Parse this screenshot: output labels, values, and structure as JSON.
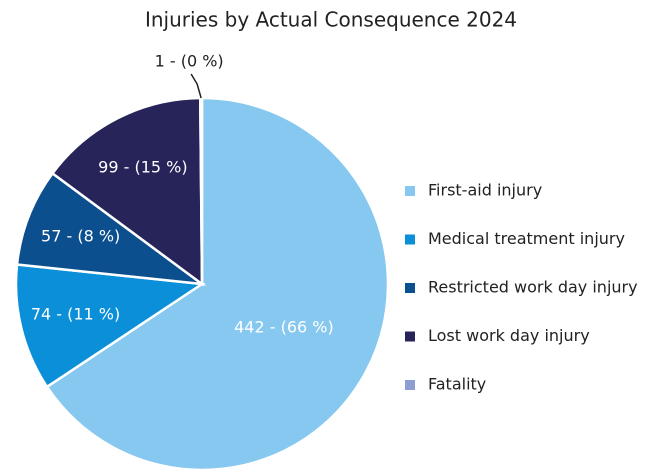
{
  "chart_data": {
    "type": "pie",
    "title": "Injuries by Actual Consequence 2024",
    "categories": [
      "First-aid injury",
      "Medical treatment injury",
      "Restricted work day injury",
      "Lost work day injury",
      "Fatality"
    ],
    "values": [
      442,
      74,
      57,
      99,
      1
    ],
    "value_labels": [
      "442 - (66 %)",
      "74 - (11 %)",
      "57 - (8 %)",
      "99 - (15 %)",
      "1 - (0 %)"
    ],
    "colors": [
      "#87c8f0",
      "#0a8fd8",
      "#0b4f8f",
      "#27245a",
      "#8c9fd0"
    ],
    "legend": "right"
  }
}
